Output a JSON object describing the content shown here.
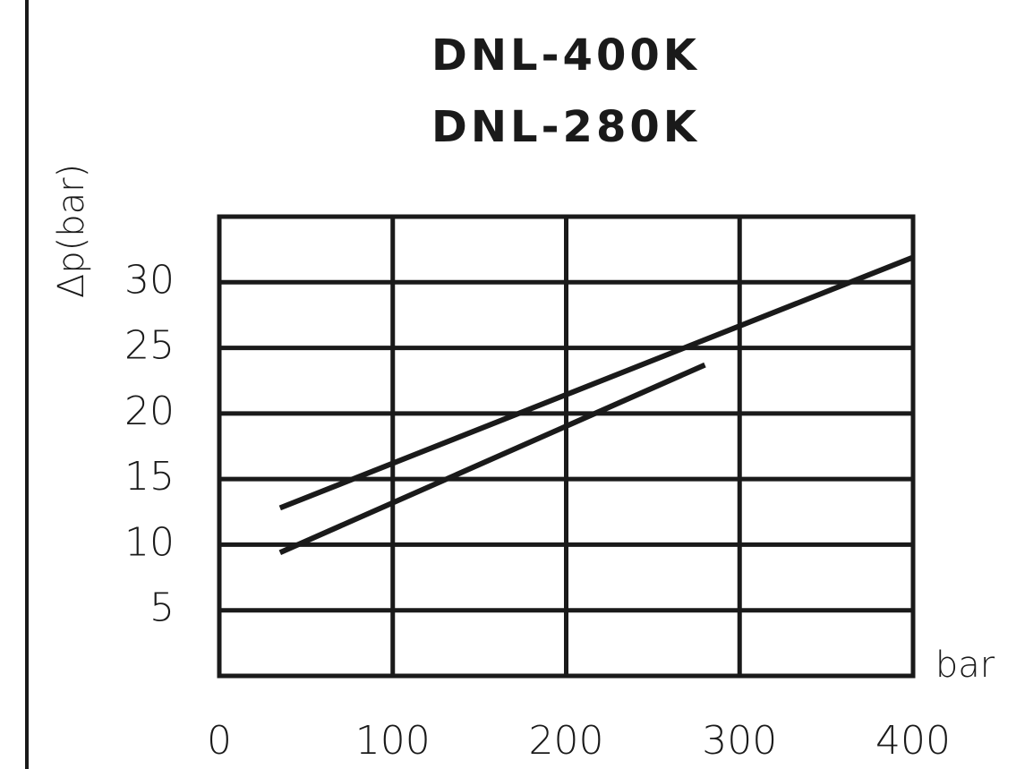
{
  "chart_data": {
    "type": "line",
    "title": [
      "DNL-400K",
      "DNL-280K"
    ],
    "y_label": "Δp(bar)",
    "x_label": "bar",
    "series": [
      {
        "color": "#1a1a1a",
        "x": [
          35,
          400
        ],
        "values": [
          12.8,
          31.9
        ]
      },
      {
        "color": "#1a1a1a",
        "x": [
          35,
          280
        ],
        "values": [
          9.4,
          23.7
        ]
      }
    ],
    "xlim": [
      0,
      400
    ],
    "xticks": [
      0,
      100,
      200,
      300,
      400
    ],
    "ylim": [
      0,
      35
    ],
    "yticks": [
      5,
      10,
      15,
      20,
      25,
      30
    ],
    "grid": true
  }
}
